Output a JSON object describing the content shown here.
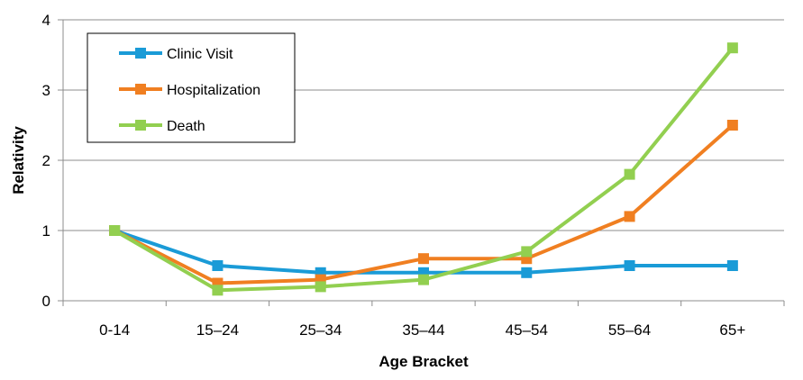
{
  "chart_data": {
    "type": "line",
    "title": "",
    "xlabel": "Age Bracket",
    "ylabel": "Relativity",
    "categories": [
      "0-14",
      "15–24",
      "25–34",
      "35–44",
      "45–54",
      "55–64",
      "65+"
    ],
    "ylim": [
      0,
      4
    ],
    "yticks": [
      0,
      1,
      2,
      3,
      4
    ],
    "grid": true,
    "legend_position": "top-left",
    "series": [
      {
        "name": "Clinic Visit",
        "color": "#1a9bd7",
        "values": [
          1.0,
          0.5,
          0.4,
          0.4,
          0.4,
          0.5,
          0.5
        ]
      },
      {
        "name": "Hospitalization",
        "color": "#f07f21",
        "values": [
          1.0,
          0.25,
          0.3,
          0.6,
          0.6,
          1.2,
          2.5
        ]
      },
      {
        "name": "Death",
        "color": "#92cf50",
        "values": [
          1.0,
          0.15,
          0.2,
          0.3,
          0.7,
          1.8,
          3.6
        ]
      }
    ]
  }
}
